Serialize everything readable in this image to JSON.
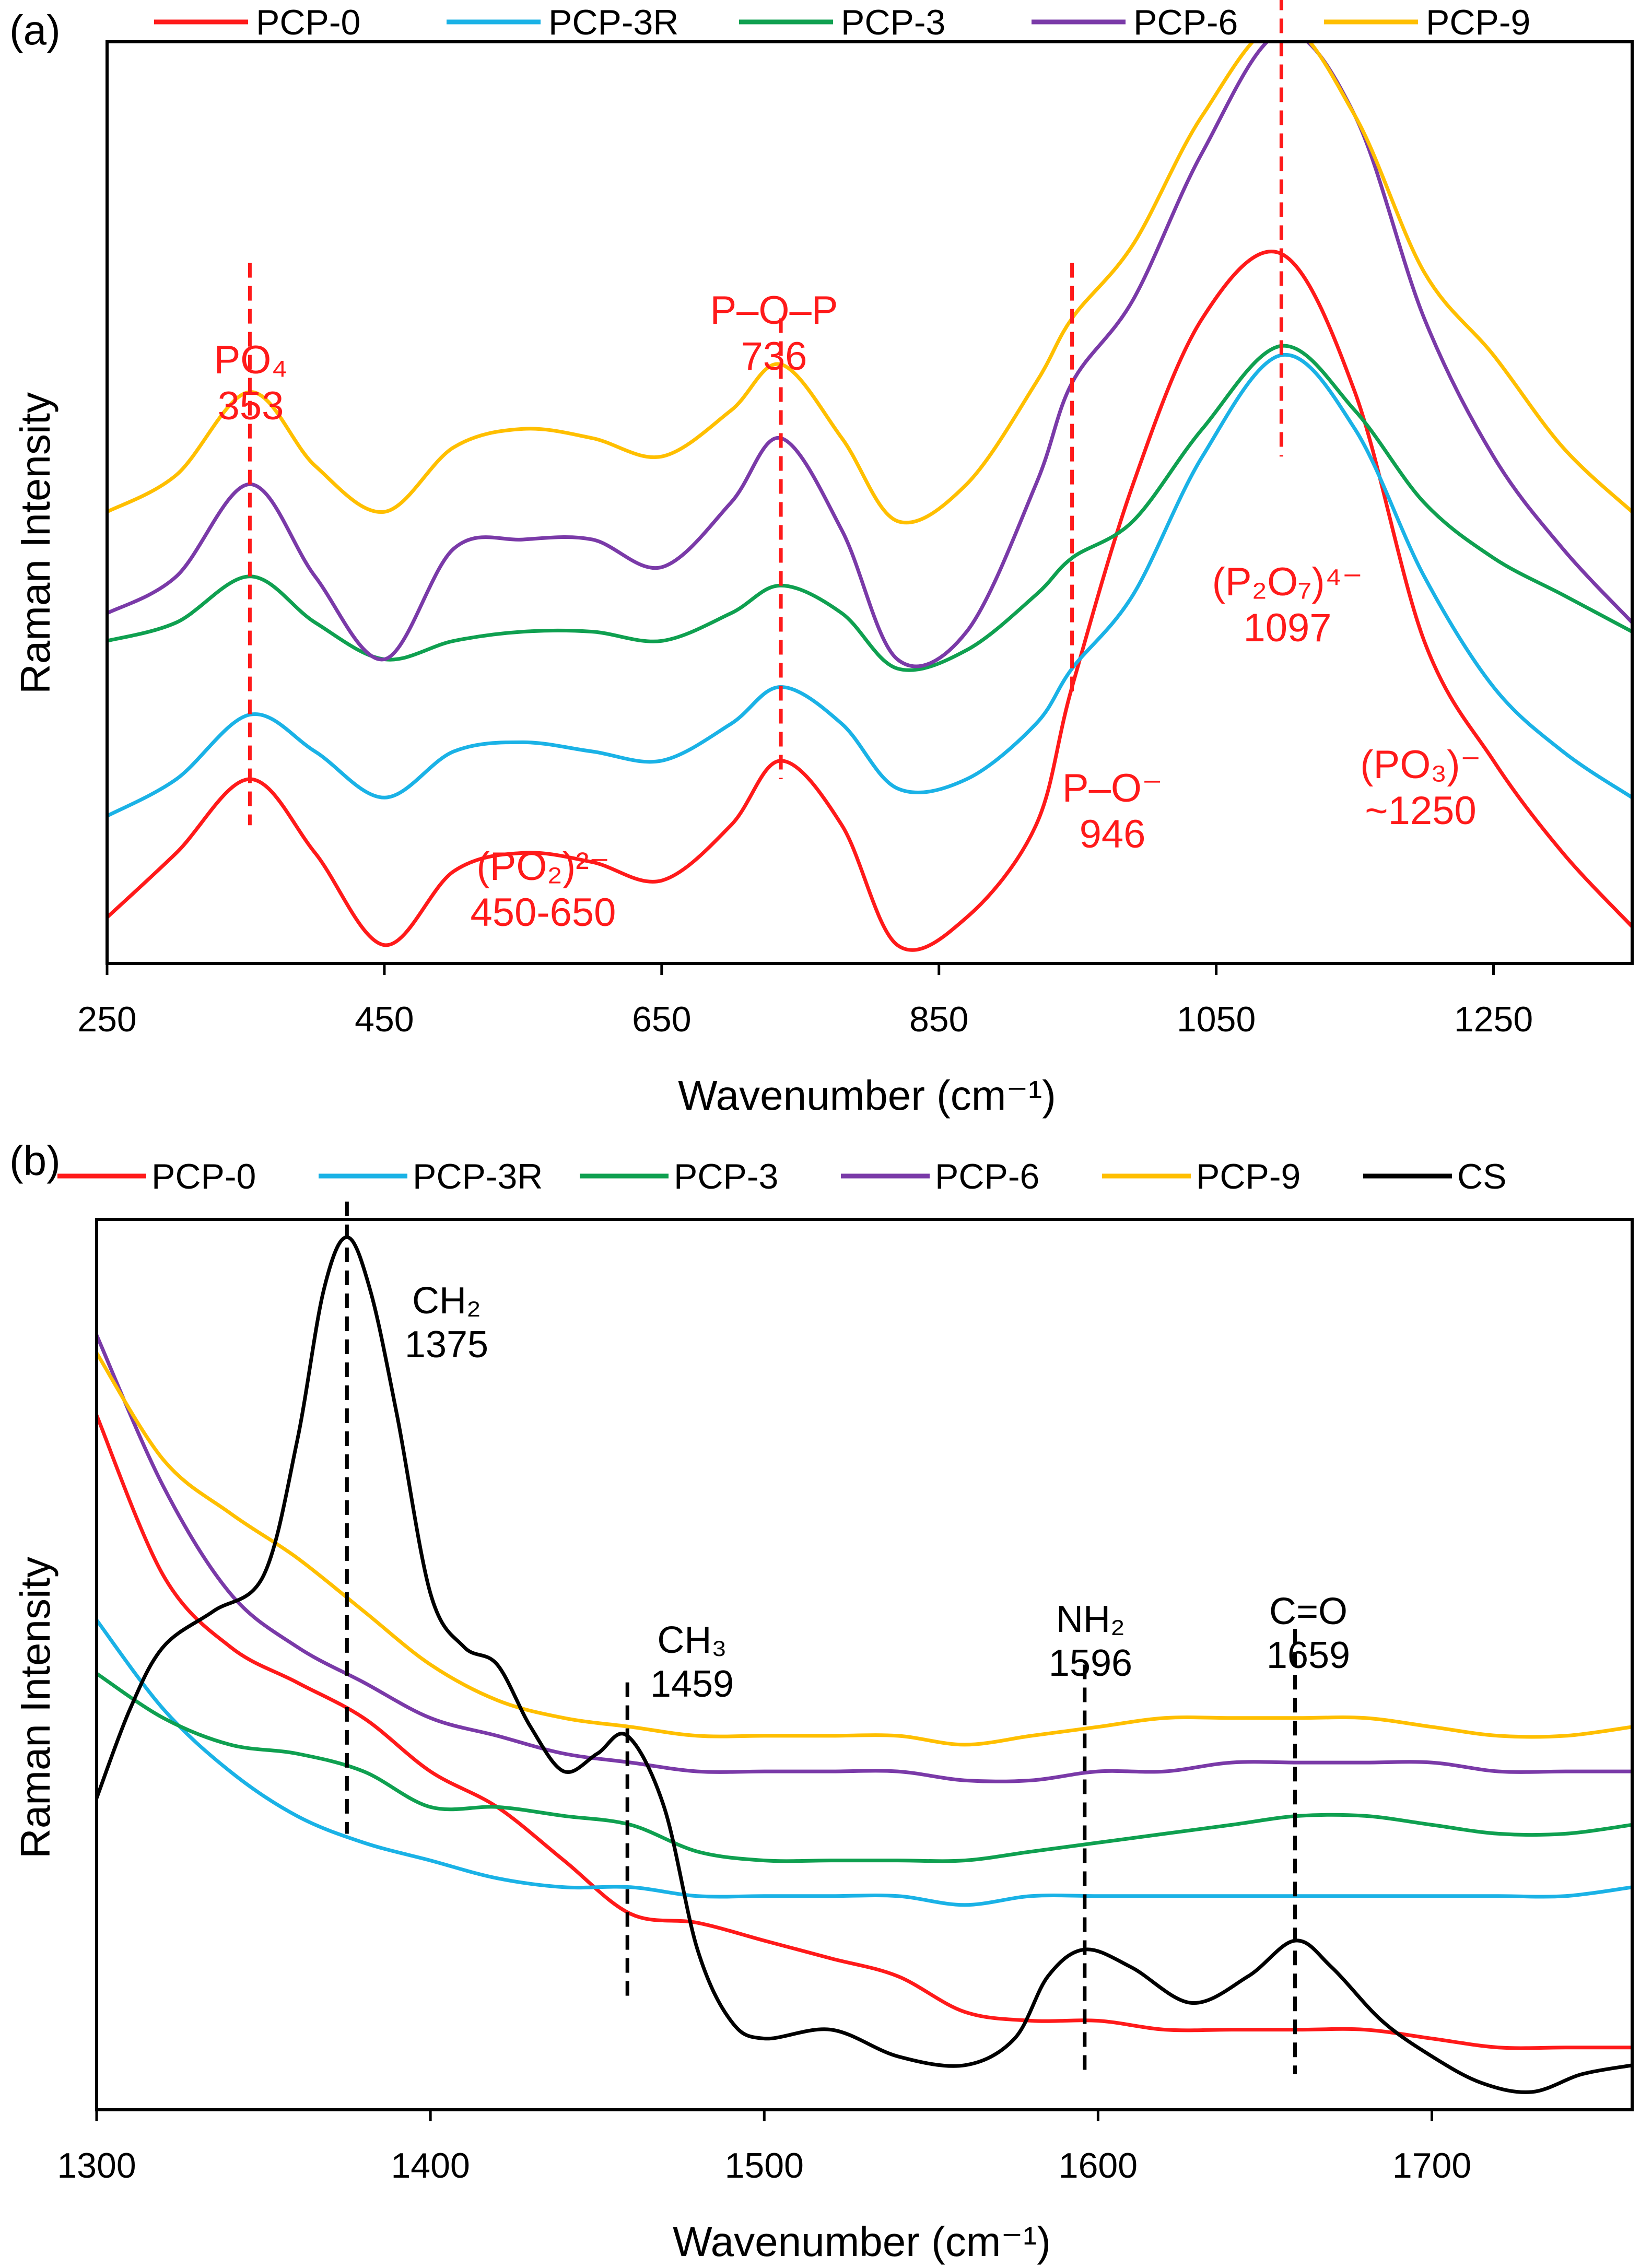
{
  "chart_data": [
    {
      "panel": "(a)",
      "type": "line",
      "xlabel": "Wavenumber (cm⁻¹)",
      "ylabel": "Raman Intensity",
      "xlim": [
        250,
        1350
      ],
      "xticks": [
        250,
        450,
        650,
        850,
        1050,
        1250
      ],
      "ylim": [
        0,
        100
      ],
      "legend_position": "top",
      "colors": {
        "PCP-0": "#ff1a1a",
        "PCP-3R": "#1ab2e6",
        "PCP-3": "#0fa050",
        "PCP-6": "#7a3aa8",
        "PCP-9": "#ffbf00"
      },
      "series": [
        {
          "name": "PCP-0",
          "x": [
            250,
            300,
            353,
            400,
            450,
            500,
            550,
            600,
            650,
            700,
            736,
            780,
            820,
            870,
            920,
            946,
            990,
            1040,
            1097,
            1150,
            1200,
            1250,
            1300,
            1350
          ],
          "values": [
            5,
            12,
            20,
            12,
            2,
            10,
            12,
            11,
            9,
            15,
            22,
            15,
            2,
            5,
            15,
            30,
            52,
            70,
            77,
            62,
            35,
            22,
            12,
            4
          ]
        },
        {
          "name": "PCP-3R",
          "x": [
            250,
            300,
            353,
            400,
            450,
            500,
            550,
            600,
            650,
            700,
            736,
            780,
            820,
            870,
            920,
            946,
            990,
            1040,
            1097,
            1150,
            1200,
            1250,
            1300,
            1350
          ],
          "values": [
            16,
            20,
            27,
            23,
            18,
            23,
            24,
            23,
            22,
            26,
            30,
            26,
            19,
            20,
            26,
            32,
            40,
            55,
            66,
            58,
            42,
            30,
            23,
            18
          ]
        },
        {
          "name": "PCP-3",
          "x": [
            250,
            300,
            353,
            400,
            450,
            500,
            550,
            600,
            650,
            700,
            736,
            780,
            820,
            870,
            920,
            946,
            990,
            1040,
            1097,
            1150,
            1200,
            1250,
            1300,
            1350
          ],
          "values": [
            35,
            37,
            42,
            37,
            33,
            35,
            36,
            36,
            35,
            38,
            41,
            38,
            32,
            34,
            40,
            44,
            48,
            58,
            67,
            60,
            50,
            44,
            40,
            36
          ]
        },
        {
          "name": "PCP-6",
          "x": [
            250,
            300,
            353,
            400,
            450,
            500,
            550,
            600,
            650,
            700,
            736,
            780,
            820,
            870,
            920,
            946,
            990,
            1040,
            1097,
            1150,
            1200,
            1250,
            1300,
            1350
          ],
          "values": [
            38,
            42,
            52,
            42,
            33,
            45,
            46,
            46,
            43,
            50,
            57,
            47,
            33,
            36,
            52,
            63,
            72,
            88,
            101,
            92,
            70,
            55,
            45,
            37
          ]
        },
        {
          "name": "PCP-9",
          "x": [
            250,
            300,
            353,
            400,
            450,
            500,
            550,
            600,
            650,
            700,
            736,
            780,
            820,
            870,
            920,
            946,
            990,
            1040,
            1097,
            1150,
            1200,
            1250,
            1300,
            1350
          ],
          "values": [
            49,
            53,
            62,
            54,
            49,
            56,
            58,
            57,
            55,
            60,
            65,
            57,
            48,
            52,
            63,
            70,
            78,
            92,
            102,
            92,
            75,
            66,
            56,
            49
          ]
        }
      ],
      "markers": [
        {
          "x": 353,
          "ytop": 76,
          "ybottom": 15,
          "lines": [
            "PO₄",
            "353"
          ]
        },
        {
          "x": 736,
          "ytop": 70,
          "ybottom": 20,
          "lines": [
            "P–O–P",
            "736"
          ]
        },
        {
          "x": 946,
          "ytop": 76,
          "ybottom": 29,
          "lines": [
            "P–O⁻",
            "946"
          ]
        },
        {
          "x": 1097,
          "ytop": 110,
          "ybottom": 55,
          "lines": [
            "(P₂O₇)⁴⁻",
            "1097"
          ]
        }
      ],
      "annotations": [
        {
          "x": 1250,
          "y": 16,
          "lines": [
            "(PO₃)⁻",
            "~1250"
          ]
        },
        {
          "x": 570,
          "y": 5,
          "lines": [
            "(PO₂)²⁻",
            "450-650"
          ]
        }
      ]
    },
    {
      "panel": "(b)",
      "type": "line",
      "xlabel": "Wavenumber (cm⁻¹)",
      "ylabel": "Raman Intensity",
      "xlim": [
        1300,
        1760
      ],
      "xticks": [
        1300,
        1400,
        1500,
        1600,
        1700
      ],
      "ylim": [
        0,
        100
      ],
      "legend_position": "top",
      "colors": {
        "PCP-0": "#ff1a1a",
        "PCP-3R": "#1ab2e6",
        "PCP-3": "#0fa050",
        "PCP-6": "#7a3aa8",
        "PCP-9": "#ffbf00",
        "CS": "#000000"
      },
      "series": [
        {
          "name": "PCP-0",
          "x": [
            1300,
            1320,
            1340,
            1360,
            1380,
            1400,
            1420,
            1440,
            1460,
            1480,
            1500,
            1520,
            1540,
            1560,
            1580,
            1600,
            1620,
            1640,
            1660,
            1680,
            1700,
            1720,
            1740,
            1760
          ],
          "values": [
            78,
            60,
            52,
            48,
            44,
            38,
            34,
            28,
            22,
            21,
            19,
            17,
            15,
            11,
            10,
            10,
            9,
            9,
            9,
            9,
            8,
            7,
            7,
            7
          ]
        },
        {
          "name": "PCP-3R",
          "x": [
            1300,
            1320,
            1340,
            1360,
            1380,
            1400,
            1420,
            1440,
            1460,
            1480,
            1500,
            1520,
            1540,
            1560,
            1580,
            1600,
            1620,
            1640,
            1660,
            1680,
            1700,
            1720,
            1740,
            1760
          ],
          "values": [
            55,
            45,
            38,
            33,
            30,
            28,
            26,
            25,
            25,
            24,
            24,
            24,
            24,
            23,
            24,
            24,
            24,
            24,
            24,
            24,
            24,
            24,
            24,
            25
          ]
        },
        {
          "name": "PCP-3",
          "x": [
            1300,
            1320,
            1340,
            1360,
            1380,
            1400,
            1420,
            1440,
            1460,
            1480,
            1500,
            1520,
            1540,
            1560,
            1580,
            1600,
            1620,
            1640,
            1660,
            1680,
            1700,
            1720,
            1740,
            1760
          ],
          "values": [
            49,
            44,
            41,
            40,
            38,
            34,
            34,
            33,
            32,
            29,
            28,
            28,
            28,
            28,
            29,
            30,
            31,
            32,
            33,
            33,
            32,
            31,
            31,
            32
          ]
        },
        {
          "name": "PCP-6",
          "x": [
            1300,
            1320,
            1340,
            1360,
            1380,
            1400,
            1420,
            1440,
            1460,
            1480,
            1500,
            1520,
            1540,
            1560,
            1580,
            1600,
            1620,
            1640,
            1660,
            1680,
            1700,
            1720,
            1740,
            1760
          ],
          "values": [
            87,
            70,
            58,
            52,
            48,
            44,
            42,
            40,
            39,
            38,
            38,
            38,
            38,
            37,
            37,
            38,
            38,
            39,
            39,
            39,
            39,
            38,
            38,
            38
          ]
        },
        {
          "name": "PCP-9",
          "x": [
            1300,
            1320,
            1340,
            1360,
            1380,
            1400,
            1420,
            1440,
            1460,
            1480,
            1500,
            1520,
            1540,
            1560,
            1580,
            1600,
            1620,
            1640,
            1660,
            1680,
            1700,
            1720,
            1740,
            1760
          ],
          "values": [
            85,
            73,
            67,
            62,
            56,
            50,
            46,
            44,
            43,
            42,
            42,
            42,
            42,
            41,
            42,
            43,
            44,
            44,
            44,
            44,
            43,
            42,
            42,
            43
          ]
        },
        {
          "name": "CS",
          "x": [
            1300,
            1310,
            1320,
            1335,
            1350,
            1360,
            1368,
            1375,
            1382,
            1390,
            1400,
            1410,
            1420,
            1430,
            1440,
            1450,
            1459,
            1470,
            1480,
            1490,
            1500,
            1520,
            1540,
            1560,
            1575,
            1585,
            1596,
            1610,
            1628,
            1645,
            1659,
            1670,
            1685,
            1700,
            1715,
            1730,
            1745,
            1760
          ],
          "values": [
            35,
            45,
            52,
            56,
            60,
            75,
            92,
            98,
            92,
            78,
            58,
            52,
            50,
            43,
            38,
            40,
            42,
            34,
            18,
            10,
            8,
            9,
            6,
            5,
            8,
            15,
            18,
            16,
            12,
            15,
            19,
            16,
            10,
            6,
            3,
            2,
            4,
            5
          ]
        }
      ],
      "markers": [
        {
          "x": 1375,
          "ytop": 102,
          "ybottom": 31,
          "lines": [
            "CH₂",
            "1375"
          ]
        },
        {
          "x": 1459,
          "ytop": 48,
          "ybottom": 12,
          "lines": [
            "CH₃",
            "1459"
          ]
        },
        {
          "x": 1596,
          "ytop": 50,
          "ybottom": 4,
          "lines": [
            "NH₂",
            "1596"
          ]
        },
        {
          "x": 1659,
          "ytop": 54,
          "ybottom": 4,
          "lines": [
            "C=O",
            "1659"
          ]
        }
      ]
    }
  ]
}
